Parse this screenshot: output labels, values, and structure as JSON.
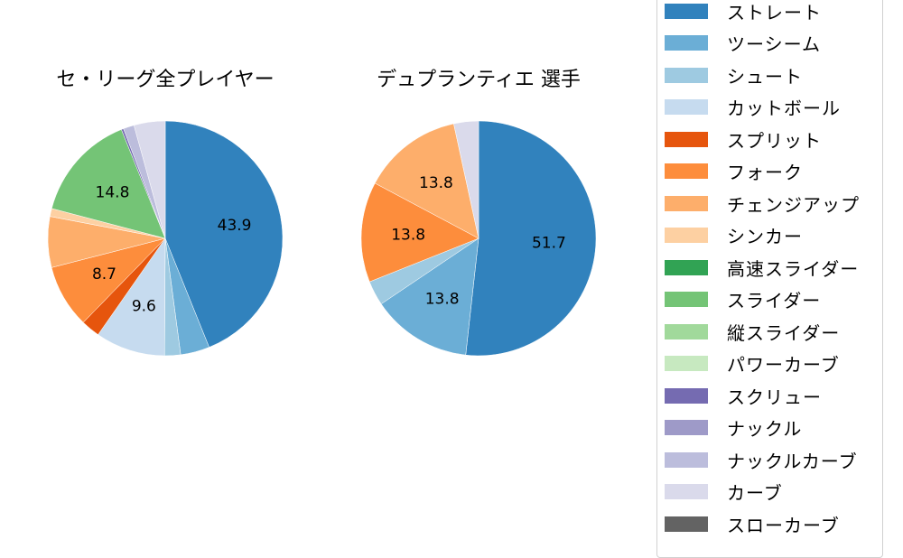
{
  "chart_data": [
    {
      "type": "pie",
      "title": "セ・リーグ全プレイヤー",
      "center": [
        183,
        264
      ],
      "radius": 130,
      "start_angle": 90,
      "direction": "clockwise",
      "categories": [
        "ストレート",
        "ツーシーム",
        "シュート",
        "カットボール",
        "スプリット",
        "フォーク",
        "チェンジアップ",
        "シンカー",
        "スライダー",
        "スクリュー",
        "ナックルカーブ",
        "カーブ"
      ],
      "values": [
        43.9,
        4.0,
        2.2,
        9.6,
        2.6,
        8.7,
        7.0,
        1.1,
        14.8,
        0.3,
        1.5,
        4.3
      ],
      "colors": [
        "#3182bd",
        "#6baed6",
        "#9ecae1",
        "#c6dbef",
        "#e6550d",
        "#fd8d3c",
        "#fdae6b",
        "#fdd0a2",
        "#74c476",
        "#756bb1",
        "#bcbddc",
        "#dadaeb"
      ],
      "labels_shown": {
        "0": "43.9",
        "3": "9.6",
        "5": "8.7",
        "8": "14.8"
      }
    },
    {
      "type": "pie",
      "title": "デュプランティエ  選手",
      "center": [
        530,
        264
      ],
      "radius": 130,
      "start_angle": 90,
      "direction": "clockwise",
      "categories": [
        "ストレート",
        "ツーシーム",
        "シュート",
        "フォーク",
        "チェンジアップ",
        "カーブ"
      ],
      "values": [
        51.7,
        13.8,
        3.4,
        13.8,
        13.8,
        3.4
      ],
      "colors": [
        "#3182bd",
        "#6baed6",
        "#9ecae1",
        "#fd8d3c",
        "#fdae6b",
        "#dadaeb"
      ],
      "labels_shown": {
        "0": "51.7",
        "1": "13.8",
        "3": "13.8",
        "4": "13.8"
      }
    }
  ],
  "titles": {
    "left": "セ・リーグ全プレイヤー",
    "right": "デュプランティエ  選手"
  },
  "legend": {
    "items": [
      {
        "label": "ストレート",
        "color": "#3182bd"
      },
      {
        "label": "ツーシーム",
        "color": "#6baed6"
      },
      {
        "label": "シュート",
        "color": "#9ecae1"
      },
      {
        "label": "カットボール",
        "color": "#c6dbef"
      },
      {
        "label": "スプリット",
        "color": "#e6550d"
      },
      {
        "label": "フォーク",
        "color": "#fd8d3c"
      },
      {
        "label": "チェンジアップ",
        "color": "#fdae6b"
      },
      {
        "label": "シンカー",
        "color": "#fdd0a2"
      },
      {
        "label": "高速スライダー",
        "color": "#31a354"
      },
      {
        "label": "スライダー",
        "color": "#74c476"
      },
      {
        "label": "縦スライダー",
        "color": "#a1d99b"
      },
      {
        "label": "パワーカーブ",
        "color": "#c7e9c0"
      },
      {
        "label": "スクリュー",
        "color": "#756bb1"
      },
      {
        "label": "ナックル",
        "color": "#9e9ac8"
      },
      {
        "label": "ナックルカーブ",
        "color": "#bcbddc"
      },
      {
        "label": "カーブ",
        "color": "#dadaeb"
      },
      {
        "label": "スローカーブ",
        "color": "#636363"
      }
    ]
  }
}
